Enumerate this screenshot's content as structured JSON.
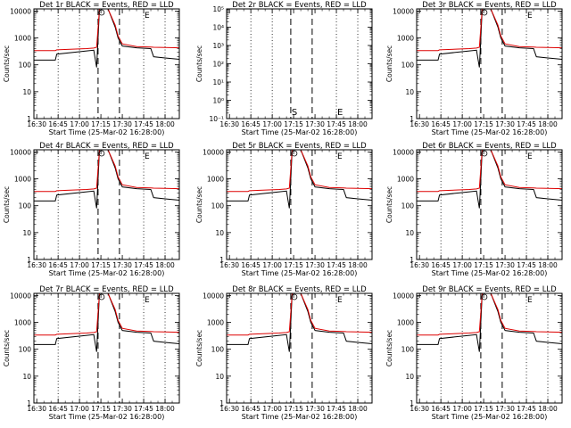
{
  "figure": {
    "xaxis_title": "Start Time (25-Mar-02 16:28:00)",
    "yaxis_title": "Counts/sec",
    "x_tick_labels": [
      "16:30",
      "16:45",
      "17:00",
      "17:15",
      "17:30",
      "17:45",
      "18:00"
    ],
    "y_tick_labels": [
      "1",
      "10",
      "100",
      "1000",
      "10000"
    ],
    "small_y_tick_labels": [
      "10⁻¹",
      "10⁰",
      "10¹",
      "10²",
      "10³",
      "10⁴",
      "10⁵"
    ],
    "marker_labels": [
      "S",
      "E"
    ]
  },
  "colors": {
    "events": "#000000",
    "lld": "#dd0000",
    "frame": "#000000",
    "background": "#ffffff"
  },
  "chart_data": [
    {
      "title": "Det 1r BLACK = Events, RED = LLD",
      "type": "line",
      "xlim": [
        "16:28",
        "18:10"
      ],
      "ylim": [
        1,
        12000
      ],
      "yscale": "log",
      "vertical_lines": [
        "16:45",
        "17:00",
        "17:13",
        "17:28",
        "17:45",
        "18:00"
      ],
      "series": [
        {
          "name": "Events",
          "x": [
            "16:28",
            "16:43",
            "16:44",
            "17:05",
            "17:10",
            "17:12",
            "17:14",
            "17:15",
            "17:17",
            "17:20",
            "17:25",
            "17:27",
            "17:30",
            "17:40",
            "17:50",
            "17:52",
            "18:00",
            "18:10"
          ],
          "y": [
            150,
            150,
            250,
            330,
            350,
            80,
            12000,
            12000,
            12000,
            12000,
            2500,
            1000,
            500,
            430,
            400,
            200,
            180,
            160
          ]
        },
        {
          "name": "LLD",
          "x": [
            "16:28",
            "16:43",
            "16:44",
            "17:05",
            "17:10",
            "17:12",
            "17:14",
            "17:15",
            "17:17",
            "17:20",
            "17:25",
            "17:27",
            "17:30",
            "17:40",
            "17:50",
            "17:52",
            "18:00",
            "18:10"
          ],
          "y": [
            340,
            340,
            360,
            400,
            420,
            450,
            12000,
            12000,
            12000,
            12000,
            3000,
            1200,
            600,
            480,
            460,
            450,
            440,
            430
          ]
        }
      ]
    },
    {
      "title": "Det 2r BLACK = Events, RED = LLD",
      "type": "line",
      "xlim": [
        "16:28",
        "18:10"
      ],
      "ylim": [
        1,
        100000
      ],
      "yscale": "log",
      "vertical_lines": [
        "16:45",
        "17:00",
        "17:13",
        "17:28",
        "17:45",
        "18:00"
      ],
      "series": []
    },
    {
      "title": "Det 3r BLACK = Events, RED = LLD",
      "type": "line",
      "xlim": [
        "16:28",
        "18:10"
      ],
      "ylim": [
        1,
        12000
      ],
      "yscale": "log",
      "vertical_lines": [
        "16:45",
        "17:00",
        "17:13",
        "17:28",
        "17:45",
        "18:00"
      ],
      "series": [
        {
          "name": "Events",
          "x": [
            "16:28",
            "16:43",
            "16:44",
            "17:05",
            "17:10",
            "17:12",
            "17:14",
            "17:15",
            "17:17",
            "17:20",
            "17:25",
            "17:27",
            "17:30",
            "17:40",
            "17:50",
            "17:52",
            "18:00",
            "18:10"
          ],
          "y": [
            150,
            150,
            250,
            330,
            350,
            80,
            12000,
            12000,
            12000,
            12000,
            2500,
            1000,
            500,
            430,
            400,
            200,
            180,
            160
          ]
        },
        {
          "name": "LLD",
          "x": [
            "16:28",
            "16:43",
            "16:44",
            "17:05",
            "17:10",
            "17:12",
            "17:14",
            "17:15",
            "17:17",
            "17:20",
            "17:25",
            "17:27",
            "17:30",
            "17:40",
            "17:50",
            "17:52",
            "18:00",
            "18:10"
          ],
          "y": [
            340,
            340,
            360,
            400,
            420,
            450,
            12000,
            12000,
            12000,
            12000,
            3000,
            1200,
            600,
            480,
            460,
            450,
            440,
            430
          ]
        }
      ]
    },
    {
      "title": "Det 4r BLACK = Events, RED = LLD",
      "type": "line",
      "xlim": [
        "16:28",
        "18:10"
      ],
      "ylim": [
        1,
        12000
      ],
      "yscale": "log",
      "vertical_lines": [
        "16:45",
        "17:00",
        "17:13",
        "17:28",
        "17:45",
        "18:00"
      ],
      "series": [
        {
          "name": "Events",
          "x": [
            "16:28",
            "16:43",
            "16:44",
            "17:05",
            "17:10",
            "17:12",
            "17:14",
            "17:15",
            "17:17",
            "17:20",
            "17:25",
            "17:27",
            "17:30",
            "17:40",
            "17:50",
            "17:52",
            "18:00",
            "18:10"
          ],
          "y": [
            150,
            150,
            250,
            330,
            350,
            80,
            12000,
            12000,
            12000,
            12000,
            2500,
            1000,
            500,
            430,
            400,
            200,
            180,
            160
          ]
        },
        {
          "name": "LLD",
          "x": [
            "16:28",
            "16:43",
            "16:44",
            "17:05",
            "17:10",
            "17:12",
            "17:14",
            "17:15",
            "17:17",
            "17:20",
            "17:25",
            "17:27",
            "17:30",
            "17:40",
            "17:50",
            "17:52",
            "18:00",
            "18:10"
          ],
          "y": [
            340,
            340,
            360,
            400,
            420,
            450,
            12000,
            12000,
            12000,
            12000,
            3000,
            1200,
            600,
            480,
            460,
            450,
            440,
            430
          ]
        }
      ]
    },
    {
      "title": "Det 5r BLACK = Events, RED = LLD",
      "type": "line",
      "xlim": [
        "16:28",
        "18:10"
      ],
      "ylim": [
        1,
        12000
      ],
      "yscale": "log",
      "vertical_lines": [
        "16:45",
        "17:00",
        "17:13",
        "17:28",
        "17:45",
        "18:00"
      ],
      "series": [
        {
          "name": "Events",
          "x": [
            "16:28",
            "16:43",
            "16:44",
            "17:05",
            "17:10",
            "17:12",
            "17:14",
            "17:15",
            "17:17",
            "17:20",
            "17:25",
            "17:27",
            "17:30",
            "17:40",
            "17:50",
            "17:52",
            "18:00",
            "18:10"
          ],
          "y": [
            150,
            150,
            250,
            330,
            350,
            80,
            12000,
            12000,
            12000,
            12000,
            2500,
            1000,
            500,
            430,
            400,
            200,
            180,
            160
          ]
        },
        {
          "name": "LLD",
          "x": [
            "16:28",
            "16:43",
            "16:44",
            "17:05",
            "17:10",
            "17:12",
            "17:14",
            "17:15",
            "17:17",
            "17:20",
            "17:25",
            "17:27",
            "17:30",
            "17:40",
            "17:50",
            "17:52",
            "18:00",
            "18:10"
          ],
          "y": [
            340,
            340,
            360,
            400,
            420,
            450,
            12000,
            12000,
            12000,
            12000,
            3000,
            1200,
            600,
            480,
            460,
            450,
            440,
            430
          ]
        }
      ]
    },
    {
      "title": "Det 6r BLACK = Events, RED = LLD",
      "type": "line",
      "xlim": [
        "16:28",
        "18:10"
      ],
      "ylim": [
        1,
        12000
      ],
      "yscale": "log",
      "vertical_lines": [
        "16:45",
        "17:00",
        "17:13",
        "17:28",
        "17:45",
        "18:00"
      ],
      "series": [
        {
          "name": "Events",
          "x": [
            "16:28",
            "16:43",
            "16:44",
            "17:05",
            "17:10",
            "17:12",
            "17:14",
            "17:15",
            "17:17",
            "17:20",
            "17:25",
            "17:27",
            "17:30",
            "17:40",
            "17:50",
            "17:52",
            "18:00",
            "18:10"
          ],
          "y": [
            150,
            150,
            250,
            330,
            350,
            80,
            12000,
            12000,
            12000,
            12000,
            2500,
            1000,
            500,
            430,
            400,
            200,
            180,
            160
          ]
        },
        {
          "name": "LLD",
          "x": [
            "16:28",
            "16:43",
            "16:44",
            "17:05",
            "17:10",
            "17:12",
            "17:14",
            "17:15",
            "17:17",
            "17:20",
            "17:25",
            "17:27",
            "17:30",
            "17:40",
            "17:50",
            "17:52",
            "18:00",
            "18:10"
          ],
          "y": [
            340,
            340,
            360,
            400,
            420,
            450,
            12000,
            12000,
            12000,
            12000,
            3000,
            1200,
            600,
            480,
            460,
            450,
            440,
            430
          ]
        }
      ]
    },
    {
      "title": "Det 7r BLACK = Events, RED = LLD",
      "type": "line",
      "xlim": [
        "16:28",
        "18:10"
      ],
      "ylim": [
        1,
        12000
      ],
      "yscale": "log",
      "vertical_lines": [
        "16:45",
        "17:00",
        "17:13",
        "17:28",
        "17:45",
        "18:00"
      ],
      "series": [
        {
          "name": "Events",
          "x": [
            "16:28",
            "16:43",
            "16:44",
            "17:05",
            "17:10",
            "17:12",
            "17:14",
            "17:15",
            "17:17",
            "17:20",
            "17:25",
            "17:27",
            "17:30",
            "17:40",
            "17:50",
            "17:52",
            "18:00",
            "18:10"
          ],
          "y": [
            150,
            150,
            250,
            330,
            350,
            80,
            12000,
            12000,
            12000,
            12000,
            2500,
            1000,
            500,
            430,
            400,
            200,
            180,
            160
          ]
        },
        {
          "name": "LLD",
          "x": [
            "16:28",
            "16:43",
            "16:44",
            "17:05",
            "17:10",
            "17:12",
            "17:14",
            "17:15",
            "17:17",
            "17:20",
            "17:25",
            "17:27",
            "17:30",
            "17:40",
            "17:50",
            "17:52",
            "18:00",
            "18:10"
          ],
          "y": [
            340,
            340,
            360,
            400,
            420,
            450,
            12000,
            12000,
            12000,
            12000,
            3000,
            1200,
            600,
            480,
            460,
            450,
            440,
            430
          ]
        }
      ]
    },
    {
      "title": "Det 8r BLACK = Events, RED = LLD",
      "type": "line",
      "xlim": [
        "16:28",
        "18:10"
      ],
      "ylim": [
        1,
        12000
      ],
      "yscale": "log",
      "vertical_lines": [
        "16:45",
        "17:00",
        "17:13",
        "17:28",
        "17:45",
        "18:00"
      ],
      "series": [
        {
          "name": "Events",
          "x": [
            "16:28",
            "16:43",
            "16:44",
            "17:05",
            "17:10",
            "17:12",
            "17:14",
            "17:15",
            "17:17",
            "17:20",
            "17:25",
            "17:27",
            "17:30",
            "17:40",
            "17:50",
            "17:52",
            "18:00",
            "18:10"
          ],
          "y": [
            150,
            150,
            250,
            330,
            350,
            80,
            12000,
            12000,
            12000,
            12000,
            2500,
            1000,
            500,
            430,
            400,
            200,
            180,
            160
          ]
        },
        {
          "name": "LLD",
          "x": [
            "16:28",
            "16:43",
            "16:44",
            "17:05",
            "17:10",
            "17:12",
            "17:14",
            "17:15",
            "17:17",
            "17:20",
            "17:25",
            "17:27",
            "17:30",
            "17:40",
            "17:50",
            "17:52",
            "18:00",
            "18:10"
          ],
          "y": [
            340,
            340,
            360,
            400,
            420,
            450,
            12000,
            12000,
            12000,
            12000,
            3000,
            1200,
            600,
            480,
            460,
            450,
            440,
            430
          ]
        }
      ]
    },
    {
      "title": "Det 9r BLACK = Events, RED = LLD",
      "type": "line",
      "xlim": [
        "16:28",
        "18:10"
      ],
      "ylim": [
        1,
        12000
      ],
      "yscale": "log",
      "vertical_lines": [
        "16:45",
        "17:00",
        "17:13",
        "17:28",
        "17:45",
        "18:00"
      ],
      "series": [
        {
          "name": "Events",
          "x": [
            "16:28",
            "16:43",
            "16:44",
            "17:05",
            "17:10",
            "17:12",
            "17:14",
            "17:15",
            "17:17",
            "17:20",
            "17:25",
            "17:27",
            "17:30",
            "17:40",
            "17:50",
            "17:52",
            "18:00",
            "18:10"
          ],
          "y": [
            150,
            150,
            250,
            330,
            350,
            80,
            12000,
            12000,
            12000,
            12000,
            2500,
            1000,
            500,
            430,
            400,
            200,
            180,
            160
          ]
        },
        {
          "name": "LLD",
          "x": [
            "16:28",
            "16:43",
            "16:44",
            "17:05",
            "17:10",
            "17:12",
            "17:14",
            "17:15",
            "17:17",
            "17:20",
            "17:25",
            "17:27",
            "17:30",
            "17:40",
            "17:50",
            "17:52",
            "18:00",
            "18:10"
          ],
          "y": [
            340,
            340,
            360,
            400,
            420,
            450,
            12000,
            12000,
            12000,
            12000,
            3000,
            1200,
            600,
            480,
            460,
            450,
            440,
            430
          ]
        }
      ]
    }
  ]
}
